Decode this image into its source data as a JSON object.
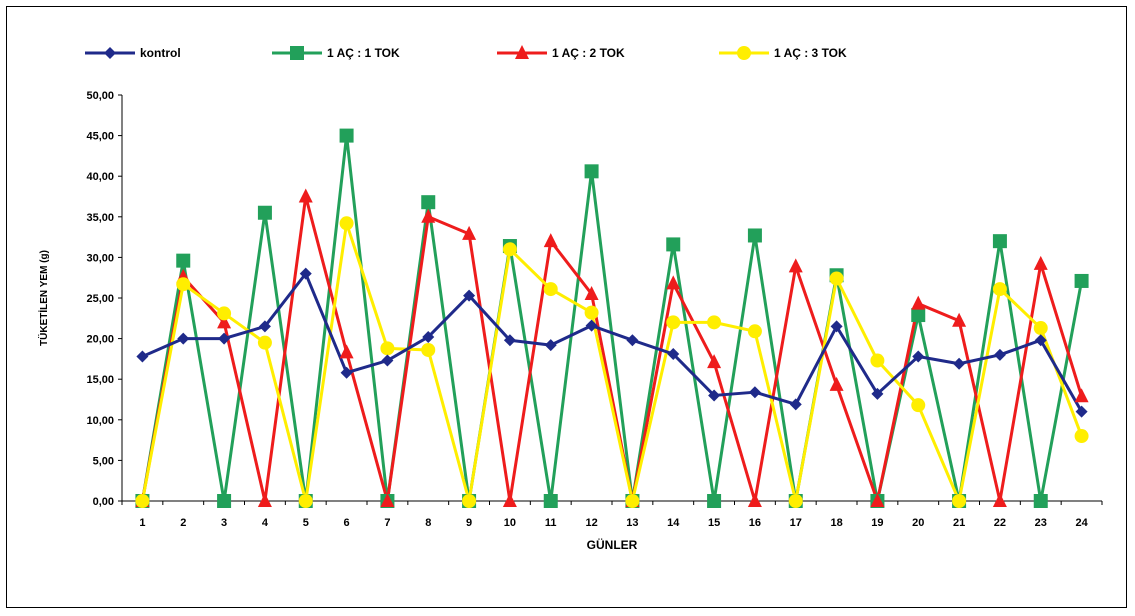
{
  "chart_data": {
    "type": "line",
    "title": "",
    "xlabel": "GÜNLER",
    "ylabel": "TÜKETİLEN YEM (g)",
    "ylim": [
      0,
      50
    ],
    "yticks": [
      "0,00",
      "5,00",
      "10,00",
      "15,00",
      "20,00",
      "25,00",
      "30,00",
      "35,00",
      "40,00",
      "45,00",
      "50,00"
    ],
    "x": [
      "1",
      "2",
      "3",
      "4",
      "5",
      "6",
      "7",
      "8",
      "9",
      "10",
      "11",
      "12",
      "13",
      "14",
      "15",
      "16",
      "17",
      "18",
      "19",
      "20",
      "21",
      "22",
      "23",
      "24"
    ],
    "legend_position": "top",
    "series": [
      {
        "name": "kontrol",
        "color": "#1f2a8a",
        "marker": "diamond",
        "values": [
          17.8,
          20.0,
          20.0,
          21.5,
          28.0,
          15.8,
          17.3,
          20.2,
          25.3,
          19.8,
          19.2,
          21.6,
          19.8,
          18.1,
          13.0,
          13.4,
          11.9,
          21.5,
          13.2,
          17.8,
          16.9,
          18.0,
          19.8,
          11.0
        ]
      },
      {
        "name": "1 AÇ : 1 TOK",
        "color": "#22a05a",
        "marker": "square",
        "values": [
          0,
          29.6,
          0,
          35.5,
          0,
          45.0,
          0,
          36.8,
          0,
          31.4,
          0,
          40.6,
          0,
          31.6,
          0,
          32.7,
          0,
          27.8,
          0,
          22.9,
          0,
          32.0,
          0,
          27.1
        ]
      },
      {
        "name": "1 AÇ : 2 TOK",
        "color": "#ee1c1c",
        "marker": "triangle",
        "values": [
          0,
          27.6,
          22.0,
          0,
          37.5,
          18.3,
          0,
          35.0,
          32.9,
          0,
          32.0,
          25.5,
          0,
          26.8,
          17.1,
          0,
          28.9,
          14.3,
          0,
          24.3,
          22.2,
          0,
          29.2,
          12.9
        ]
      },
      {
        "name": "1 AÇ : 3 TOK",
        "color": "#ffee00",
        "marker": "circle",
        "values": [
          0,
          26.7,
          23.1,
          19.5,
          0,
          34.2,
          18.8,
          18.6,
          0,
          31.0,
          26.1,
          23.2,
          0,
          22.0,
          22.0,
          20.9,
          0,
          27.4,
          17.3,
          11.8,
          0,
          26.1,
          21.3,
          8.0
        ]
      }
    ]
  }
}
